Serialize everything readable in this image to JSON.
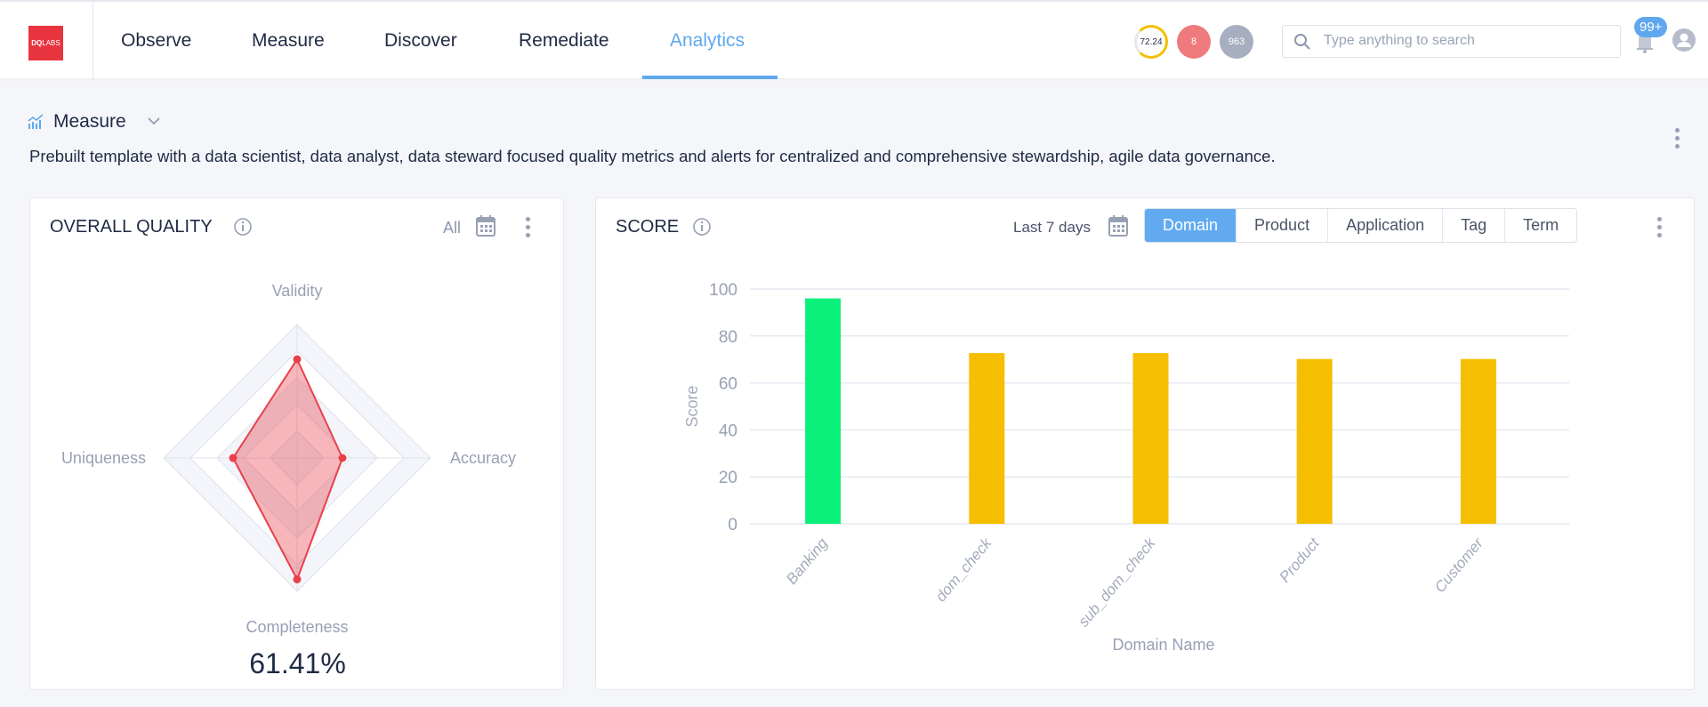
{
  "header": {
    "logo_text": "DQLABS",
    "nav": [
      {
        "label": "Observe"
      },
      {
        "label": "Measure"
      },
      {
        "label": "Discover"
      },
      {
        "label": "Remediate"
      },
      {
        "label": "Analytics",
        "active": true
      }
    ],
    "score_gauge": "72.24",
    "alerts_count": "8",
    "issues_count": "963",
    "search_placeholder": "Type anything to search",
    "notifications_badge": "99+"
  },
  "page": {
    "title": "Measure",
    "description": "Prebuilt template with a data scientist, data analyst, data steward focused quality metrics and alerts for centralized and comprehensive stewardship, agile data governance."
  },
  "overall_quality": {
    "title": "OVERALL QUALITY",
    "filter": "All",
    "score": "61.41%",
    "chart_data": {
      "type": "radar",
      "axes": [
        "Validity",
        "Accuracy",
        "Completeness",
        "Uniqueness"
      ],
      "values": [
        74,
        34,
        91,
        48
      ],
      "range": [
        0,
        100
      ],
      "color": "#e8404a"
    }
  },
  "score": {
    "title": "SCORE",
    "date_range": "Last 7 days",
    "tabs": [
      "Domain",
      "Product",
      "Application",
      "Tag",
      "Term"
    ],
    "active_tab": "Domain",
    "chart_data": {
      "type": "bar",
      "categories": [
        "Banking",
        "dom_check",
        "sub_dom_check",
        "Product",
        "Customer"
      ],
      "values": [
        96,
        72.7,
        72.7,
        70.2,
        70.2
      ],
      "colors": [
        "#0bf07a",
        "#f5be00",
        "#f5be00",
        "#f5be00",
        "#f5be00"
      ],
      "xlabel": "Domain Name",
      "ylabel": "Score",
      "ylim": [
        0,
        100
      ],
      "yticks": [
        0,
        20,
        40,
        60,
        80,
        100
      ],
      "grid": true
    }
  }
}
